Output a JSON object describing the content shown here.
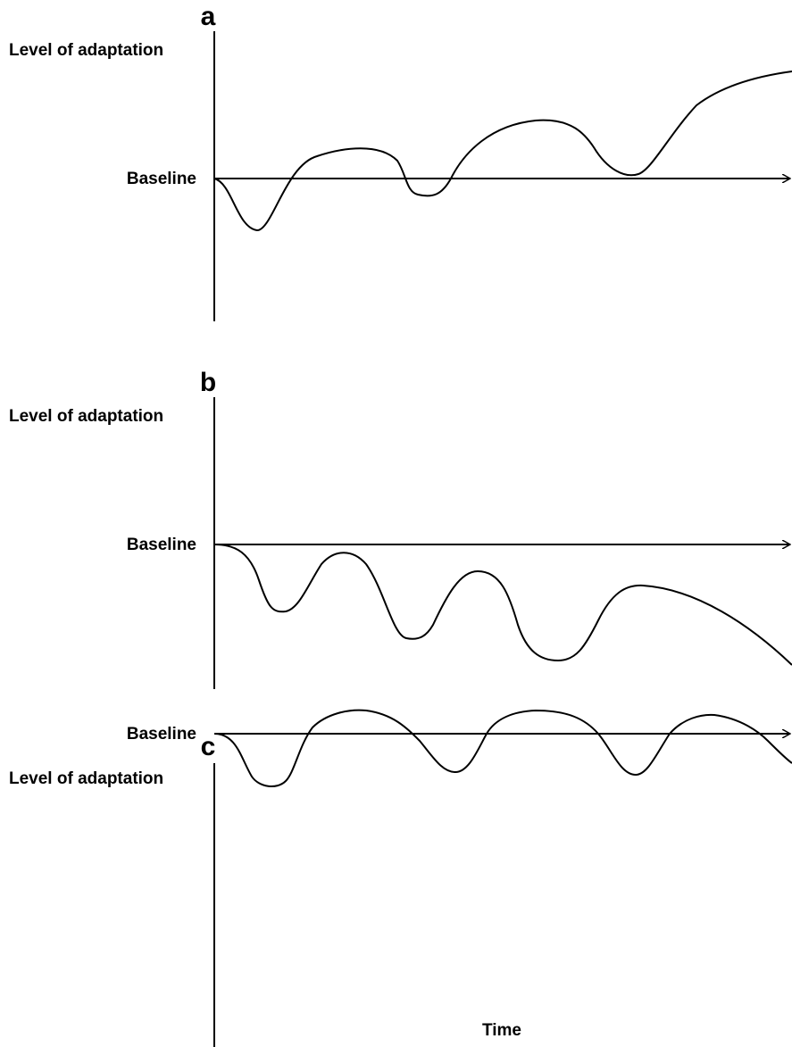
{
  "panels": [
    {
      "letter": "a",
      "y_label": "Level of adaptation",
      "baseline_label": "Baseline"
    },
    {
      "letter": "b",
      "y_label": "Level of adaptation",
      "baseline_label": "Baseline"
    },
    {
      "letter": "c",
      "y_label": "Level of adaptation",
      "baseline_label": "Baseline"
    }
  ],
  "x_label": "Time"
}
